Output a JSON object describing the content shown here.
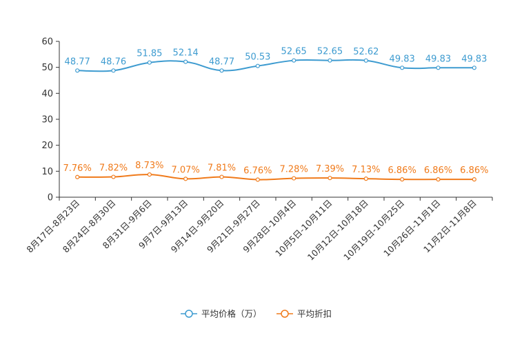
{
  "chart_data": {
    "type": "line",
    "categories": [
      "8月17日-8月23日",
      "8月24日-8月30日",
      "8月31日-9月6日",
      "9月7日-9月13日",
      "9月14日-9月20日",
      "9月21日-9月27日",
      "9月28日-10月4日",
      "10月5日-10月11日",
      "10月12日-10月18日",
      "10月19日-10月25日",
      "10月26日-11月1日",
      "11月2日-11月8日"
    ],
    "series": [
      {
        "name": "平均价格（万）",
        "color": "#3d9bd0",
        "values": [
          48.77,
          48.76,
          51.85,
          52.14,
          48.77,
          50.53,
          52.65,
          52.65,
          52.62,
          49.83,
          49.83,
          49.83
        ],
        "labels": [
          "48.77",
          "48.76",
          "51.85",
          "52.14",
          "48.77",
          "50.53",
          "52.65",
          "52.65",
          "52.62",
          "49.83",
          "49.83",
          "49.83"
        ]
      },
      {
        "name": "平均折扣",
        "color": "#f07a1a",
        "values": [
          7.76,
          7.82,
          8.73,
          7.07,
          7.81,
          6.76,
          7.28,
          7.39,
          7.13,
          6.86,
          6.86,
          6.86
        ],
        "labels": [
          "7.76%",
          "7.82%",
          "8.73%",
          "7.07%",
          "7.81%",
          "6.76%",
          "7.28%",
          "7.39%",
          "7.13%",
          "6.86%",
          "6.86%",
          "6.86%"
        ]
      }
    ],
    "y_ticks": [
      "0",
      "10",
      "20",
      "30",
      "40",
      "50",
      "60"
    ],
    "ylim": [
      0,
      60
    ],
    "title": "",
    "xlabel": "",
    "ylabel": "",
    "grid": false,
    "legend_position": "bottom-center"
  }
}
